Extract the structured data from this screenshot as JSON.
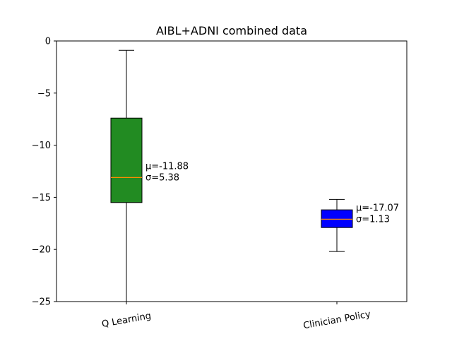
{
  "chart_data": {
    "type": "box",
    "title": "AIBL+ADNI combined data",
    "xlabel": "",
    "ylabel": "",
    "ylim": [
      -25,
      0
    ],
    "yticks": [
      0,
      -5,
      -10,
      -15,
      -20,
      -25
    ],
    "ytick_labels": [
      "0",
      "−5",
      "−10",
      "−15",
      "−20",
      "−25"
    ],
    "grid": false,
    "categories": [
      "Q Learning",
      "Clinician Policy"
    ],
    "boxes": [
      {
        "name": "Q Learning",
        "whisker_low": -25.0,
        "q1": -15.5,
        "median": -13.1,
        "q3": -7.4,
        "whisker_high": -0.9,
        "color": "#228b22",
        "median_color": "#ff8c00",
        "annotation": [
          "μ=-11.88",
          "σ=5.38"
        ]
      },
      {
        "name": "Clinician Policy",
        "whisker_low": -20.2,
        "q1": -17.9,
        "median": -17.1,
        "q3": -16.2,
        "whisker_high": -15.2,
        "color": "#0000ff",
        "median_color": "#ff8c00",
        "annotation": [
          "μ=-17.07",
          "σ=1.13"
        ]
      }
    ]
  }
}
